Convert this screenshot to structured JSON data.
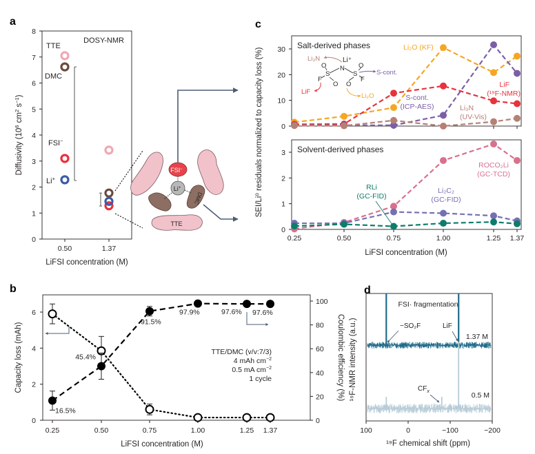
{
  "panel_labels": {
    "a": "a",
    "b": "b",
    "c": "c",
    "d": "d"
  },
  "colors": {
    "tte": "#f0a8b4",
    "dmc": "#6b4a3c",
    "fsi": "#e8323c",
    "li": "#3a5ba8",
    "li2o": "#f5a623",
    "lif": "#e8323c",
    "scont": "#7b5ea7",
    "li3n": "#b58075",
    "roco2li": "#d9708c",
    "li2c2": "#7570b3",
    "rli": "#0e7c6b",
    "nmr_dark": "#1f6b8a",
    "nmr_light": "#b7ccd7",
    "arrow": "#4b5d73"
  },
  "chart_data": [
    {
      "id": "a",
      "type": "scatter",
      "title": "DOSY-NMR",
      "xlabel": "LiFSI concentration (M)",
      "ylabel": "Diffusivity (10^6 cm^2 s^-1)",
      "ylim": [
        0,
        8
      ],
      "yticks": [
        "0",
        "1",
        "2",
        "3",
        "4",
        "5",
        "6",
        "7",
        "8"
      ],
      "categories": [
        "0.50",
        "1.37"
      ],
      "series": [
        {
          "name": "TTE",
          "color_key": "tte",
          "values": [
            7.05,
            3.42
          ]
        },
        {
          "name": "DMC",
          "color_key": "dmc",
          "values": [
            6.62,
            1.77
          ]
        },
        {
          "name": "FSI⁻",
          "color_key": "fsi",
          "values": [
            3.1,
            1.28
          ]
        },
        {
          "name": "Li⁺",
          "color_key": "li",
          "values": [
            2.28,
            1.45
          ]
        }
      ],
      "ranges": [
        {
          "category": "0.50",
          "from": 2.25,
          "to": 6.62
        },
        {
          "category": "1.37",
          "from": 1.27,
          "to": 1.77
        }
      ],
      "labels": {
        "tte": "TTE",
        "dmc": "DMC",
        "fsi": "FSI",
        "fsi_sup": "−",
        "li": "Li",
        "li_sup": "+"
      },
      "schematic": {
        "fsi": "FSI",
        "fsi_sup": "−",
        "li": "Li",
        "li_sup": "+",
        "dmc": "DMC",
        "tte": "TTE"
      }
    },
    {
      "id": "b",
      "type": "line",
      "xlabel": "LiFSI concentration (M)",
      "ylabel_left": "Capacity loss (mAh)",
      "ylabel_right": "Coulombic efficiency (%)",
      "x": [
        0.25,
        0.5,
        0.75,
        1.0,
        1.25,
        1.37
      ],
      "xticks": [
        "0.25",
        "0.50",
        "0.75",
        "1.00",
        "1.25",
        "1.37"
      ],
      "ylim_left": [
        0,
        7
      ],
      "yticks_left": [
        "0",
        "2",
        "4",
        "6"
      ],
      "ylim_right": [
        0,
        100
      ],
      "yticks_right": [
        "0",
        "20",
        "40",
        "60",
        "80",
        "100"
      ],
      "series": [
        {
          "name": "Capacity loss",
          "axis": "left",
          "marker": "open",
          "style": "dotted",
          "values": [
            5.9,
            3.85,
            0.6,
            0.15,
            0.15,
            0.15
          ],
          "errors": [
            0.55,
            0.8,
            0.3,
            0,
            0,
            0
          ]
        },
        {
          "name": "Coulombic efficiency",
          "axis": "right",
          "marker": "filled",
          "style": "dashed",
          "values": [
            16.5,
            45.4,
            91.5,
            97.9,
            97.6,
            97.6
          ],
          "errors": [
            8,
            11,
            4,
            0,
            0,
            0
          ],
          "labels": [
            "16.5%",
            "45.4%",
            "91.5%",
            "97.9%",
            "97.6%",
            "97.6%"
          ]
        }
      ],
      "annotation": [
        "TTE/DMC (v/v:7/3)",
        "4 mAh cm",
        "0.5 mA cm",
        "1 cycle"
      ],
      "annotation_sup": "−2"
    },
    {
      "id": "c",
      "type": "line",
      "xlabel": "LiFSI concentration (M)",
      "ylabel": "SEI/Li⁰ residuals normalized to capacity loss (%)",
      "x": [
        0.25,
        0.5,
        0.75,
        1.0,
        1.25,
        1.37
      ],
      "xticks": [
        "0.25",
        "0.50",
        "0.75",
        "1.00",
        "1.25",
        "1.37"
      ],
      "subplots": [
        {
          "title": "Salt-derived phases",
          "ylim": [
            0,
            34
          ],
          "yticks": [
            "0",
            "10",
            "20",
            "30"
          ],
          "series": [
            {
              "name": "Li2O (KF)",
              "color_key": "li2o",
              "values": [
                1.5,
                3.8,
                7.2,
                30.5,
                20.8,
                27.2
              ]
            },
            {
              "name": "LiF (19F-NMR)",
              "color_key": "lif",
              "values": [
                0.7,
                0.8,
                12.8,
                15.6,
                9.8,
                8.7
              ]
            },
            {
              "name": "S-cont. (ICP-AES)",
              "color_key": "scont",
              "values": [
                0.3,
                0.3,
                0.3,
                4.2,
                31.6,
                20.5
              ]
            },
            {
              "name": "Li3N (UV-Vis)",
              "color_key": "li3n",
              "values": [
                0.2,
                0.1,
                2.2,
                0.0,
                1.7,
                3.0
              ]
            }
          ],
          "labels": {
            "li2o_kf": "Li₂O (KF)",
            "lif": "LiF",
            "lif_method": "(¹⁹F-NMR)",
            "scont": "S-cont.",
            "scont_method": "(ICP-AES)",
            "li3n": "Li₃N",
            "li3n_method": "(UV-Vis)"
          },
          "molecule": {
            "li3n": "Li₃N",
            "li": "Li⁺",
            "n": "N",
            "s": "S",
            "o": "O",
            "f": "F",
            "scont": "S-cont.",
            "lif": "LiF",
            "li2o": "Li₂O"
          }
        },
        {
          "title": "Solvent-derived phases",
          "ylim": [
            0,
            3.5
          ],
          "yticks": [
            "0",
            "1",
            "2",
            "3"
          ],
          "series": [
            {
              "name": "ROCO2Li (GC-TCD)",
              "color_key": "roco2li",
              "values": [
                0.02,
                0.27,
                0.9,
                2.68,
                3.32,
                2.68
              ]
            },
            {
              "name": "Li2C2 (GC-FID)",
              "color_key": "li2c2",
              "values": [
                0.24,
                0.24,
                0.68,
                0.63,
                0.53,
                0.33
              ]
            },
            {
              "name": "RLi (GC-FID)",
              "color_key": "rli",
              "values": [
                0.13,
                0.2,
                0.12,
                0.24,
                0.29,
                0.22
              ]
            }
          ],
          "labels": {
            "roco2li": "ROCO₂Li",
            "roco2li_method": "(GC-TCD)",
            "li2c2": "Li₂C₂",
            "li2c2_method": "(GC-FID)",
            "rli": "RLi",
            "rli_method": "(GC-FID)"
          }
        }
      ]
    },
    {
      "id": "d",
      "type": "line",
      "title": "FSI· fragmentation",
      "xlabel": "¹⁹F chemical shift (ppm)",
      "ylabel": "¹⁹F-NMR intensity (a.u.)",
      "xlim": [
        100,
        -200
      ],
      "xticks": [
        "100",
        "0",
        "−100",
        "−200"
      ],
      "series": [
        {
          "name": "1.37 M",
          "color_key": "nmr_dark",
          "peaks_ppm": [
            52,
            -120
          ]
        },
        {
          "name": "0.5 M",
          "color_key": "nmr_light",
          "peaks_ppm": [
            52,
            -80,
            -120
          ]
        }
      ],
      "annotations": {
        "so2f": "−SO₂F",
        "lif": "LiF",
        "cfx": "CF",
        "cfx_sub": "x"
      }
    }
  ]
}
